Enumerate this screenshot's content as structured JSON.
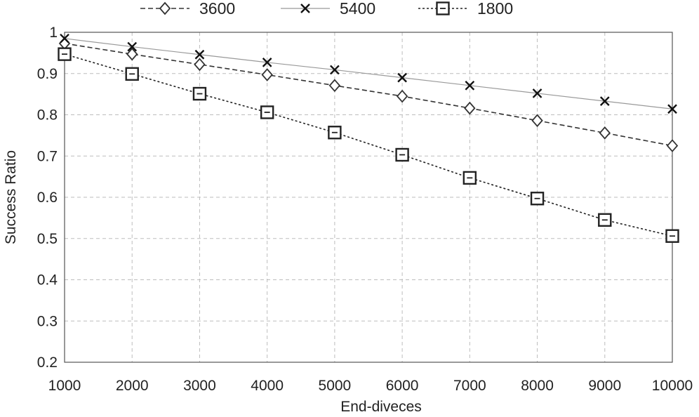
{
  "chart_data": {
    "type": "line",
    "title": "",
    "xlabel": "End-diveces",
    "ylabel": "Success Ratio",
    "x": [
      1000,
      2000,
      3000,
      4000,
      5000,
      6000,
      7000,
      8000,
      9000,
      10000
    ],
    "x_tick_labels": [
      "1000",
      "2000",
      "3000",
      "4000",
      "5000",
      "6000",
      "7000",
      "8000",
      "9000",
      "10000"
    ],
    "ylim": [
      0.2,
      1
    ],
    "y_ticks": [
      0.2,
      0.3,
      0.4,
      0.5,
      0.6,
      0.7,
      0.8,
      0.9,
      1
    ],
    "y_tick_labels": [
      "0.2",
      "0.3",
      "0.4",
      "0.5",
      "0.6",
      "0.7",
      "0.8",
      "0.9",
      "1"
    ],
    "grid": "dashed",
    "legend_position": "top",
    "series": [
      {
        "name": "3600",
        "marker": "diamond",
        "line_style": "dashed",
        "color": "#333333",
        "values": [
          0.973,
          0.947,
          0.922,
          0.897,
          0.871,
          0.845,
          0.816,
          0.786,
          0.756,
          0.725
        ]
      },
      {
        "name": "5400",
        "marker": "x",
        "line_style": "solid-thin",
        "color": "#999999",
        "values": [
          0.985,
          0.965,
          0.946,
          0.927,
          0.909,
          0.89,
          0.871,
          0.852,
          0.833,
          0.814
        ]
      },
      {
        "name": "1800",
        "marker": "square",
        "line_style": "dotted",
        "color": "#222222",
        "values": [
          0.947,
          0.899,
          0.851,
          0.806,
          0.757,
          0.703,
          0.647,
          0.597,
          0.545,
          0.506
        ]
      }
    ]
  }
}
